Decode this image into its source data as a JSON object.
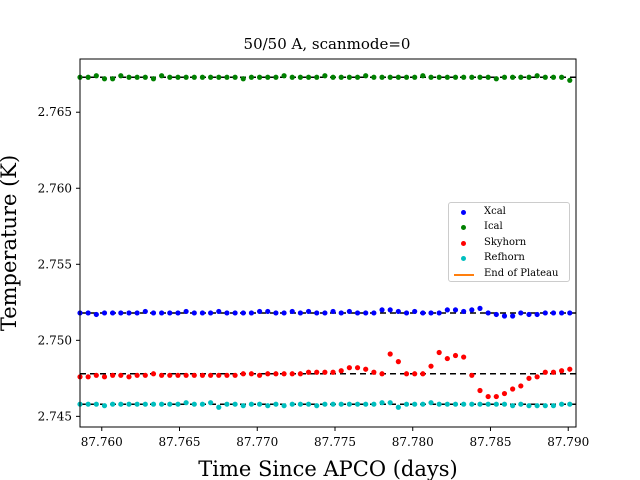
{
  "chart_data": {
    "type": "scatter",
    "title": "50/50 A, scanmode=0",
    "xlabel": "Time Since APCO (days)",
    "ylabel": "Temperature (K)",
    "xlim": [
      87.7586,
      87.7905
    ],
    "ylim": [
      2.7443,
      2.7685
    ],
    "xticks": [
      87.76,
      87.765,
      87.77,
      87.775,
      87.78,
      87.785,
      87.79
    ],
    "xtick_labels": [
      "87.760",
      "87.765",
      "87.770",
      "87.775",
      "87.780",
      "87.785",
      "87.790"
    ],
    "yticks": [
      2.745,
      2.75,
      2.755,
      2.76,
      2.765
    ],
    "ytick_labels": [
      "2.745",
      "2.750",
      "2.755",
      "2.760",
      "2.765"
    ],
    "x_start": 87.7586,
    "x_step": 0.000525,
    "series": [
      {
        "name": "Xcal",
        "color": "#0000ff",
        "plateau": 2.7518,
        "values": [
          2.7518,
          2.7518,
          2.7517,
          2.7518,
          2.7518,
          2.7518,
          2.7518,
          2.7518,
          2.7519,
          2.7518,
          2.7518,
          2.7518,
          2.7518,
          2.7519,
          2.7518,
          2.7518,
          2.7518,
          2.7519,
          2.7518,
          2.7518,
          2.7518,
          2.7518,
          2.7519,
          2.7519,
          2.7518,
          2.7518,
          2.7519,
          2.7518,
          2.7519,
          2.7518,
          2.7518,
          2.7519,
          2.7518,
          2.7519,
          2.7518,
          2.7518,
          2.7518,
          2.752,
          2.752,
          2.7519,
          2.7518,
          2.7519,
          2.7518,
          2.7518,
          2.7518,
          2.752,
          2.752,
          2.7519,
          2.752,
          2.7521,
          2.7518,
          2.7517,
          2.7516,
          2.7516,
          2.7518,
          2.7517,
          2.7517,
          2.7518,
          2.7518,
          2.7518,
          2.7518,
          2.7518,
          2.7519
        ]
      },
      {
        "name": "Ical",
        "color": "#008000",
        "plateau": 2.7673,
        "values": [
          2.7673,
          2.7673,
          2.7674,
          2.7672,
          2.7672,
          2.7674,
          2.7673,
          2.7673,
          2.7673,
          2.7672,
          2.7674,
          2.7673,
          2.7673,
          2.7673,
          2.7673,
          2.7673,
          2.7673,
          2.7673,
          2.7673,
          2.7673,
          2.7672,
          2.7673,
          2.7673,
          2.7673,
          2.7673,
          2.7674,
          2.7673,
          2.7673,
          2.7673,
          2.7673,
          2.7674,
          2.7673,
          2.7673,
          2.7673,
          2.7673,
          2.7674,
          2.7673,
          2.7673,
          2.7673,
          2.7673,
          2.7673,
          2.7673,
          2.7674,
          2.7673,
          2.7673,
          2.7673,
          2.7673,
          2.7673,
          2.7673,
          2.7673,
          2.7673,
          2.7672,
          2.7673,
          2.7673,
          2.7673,
          2.7673,
          2.7674,
          2.7673,
          2.7673,
          2.7673,
          2.7671,
          2.7673,
          2.7673,
          2.7673,
          2.7672
        ]
      },
      {
        "name": "Skyhorn",
        "color": "#ff0000",
        "plateau": 2.7478,
        "values": [
          2.7476,
          2.7476,
          2.7477,
          2.7476,
          2.7477,
          2.7477,
          2.7476,
          2.7477,
          2.7477,
          2.7478,
          2.7477,
          2.7477,
          2.7477,
          2.7477,
          2.7477,
          2.7477,
          2.7477,
          2.7477,
          2.7477,
          2.7477,
          2.7478,
          2.7478,
          2.7477,
          2.7478,
          2.7478,
          2.7478,
          2.7478,
          2.7478,
          2.7479,
          2.7479,
          2.7479,
          2.7479,
          2.748,
          2.7482,
          2.7482,
          2.7481,
          2.7479,
          2.7478,
          2.7491,
          2.7486,
          2.7478,
          2.7478,
          2.7478,
          2.7483,
          2.7492,
          2.7488,
          2.749,
          2.7489,
          2.7477,
          2.7467,
          2.7463,
          2.7463,
          2.7465,
          2.7468,
          2.747,
          2.7475,
          2.7476,
          2.7479,
          2.7479,
          2.748,
          2.7481,
          2.7481
        ]
      },
      {
        "name": "Refhorn",
        "color": "#00bfbf",
        "plateau": 2.7458,
        "values": [
          2.7458,
          2.7458,
          2.7458,
          2.7457,
          2.7458,
          2.7458,
          2.7458,
          2.7458,
          2.7458,
          2.7458,
          2.7458,
          2.7458,
          2.7458,
          2.7459,
          2.7458,
          2.7458,
          2.7459,
          2.7456,
          2.7458,
          2.7458,
          2.7457,
          2.7458,
          2.7458,
          2.7457,
          2.7458,
          2.7457,
          2.7458,
          2.7458,
          2.7458,
          2.7457,
          2.7458,
          2.7458,
          2.7458,
          2.7458,
          2.7458,
          2.7458,
          2.7458,
          2.7459,
          2.7459,
          2.7456,
          2.7458,
          2.7458,
          2.7458,
          2.7459,
          2.7458,
          2.7458,
          2.7458,
          2.7458,
          2.7458,
          2.7458,
          2.7458,
          2.7458,
          2.7458,
          2.7457,
          2.7458,
          2.7457,
          2.7457,
          2.7457,
          2.7457,
          2.7458,
          2.7458,
          2.7458,
          2.7458
        ]
      }
    ],
    "plateau_line": {
      "name": "End of Plateau",
      "color": "#ff7f0e"
    },
    "legend": "center-right",
    "grid": false
  }
}
